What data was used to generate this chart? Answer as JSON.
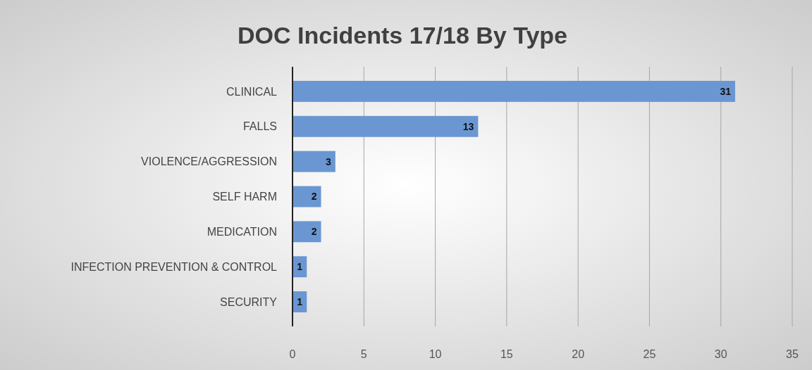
{
  "chart_data": {
    "type": "bar",
    "orientation": "horizontal",
    "title": "DOC Incidents 17/18 By Type",
    "categories": [
      "CLINICAL",
      "FALLS",
      "VIOLENCE/AGGRESSION",
      "SELF HARM",
      "MEDICATION",
      "INFECTION PREVENTION & CONTROL",
      "SECURITY"
    ],
    "values": [
      31,
      13,
      3,
      2,
      2,
      1,
      1
    ],
    "color": "#6a97d2",
    "xlim": [
      0,
      35
    ],
    "xticks": [
      0,
      5,
      10,
      15,
      20,
      25,
      30,
      35
    ],
    "grid": "x",
    "data_labels": true
  }
}
